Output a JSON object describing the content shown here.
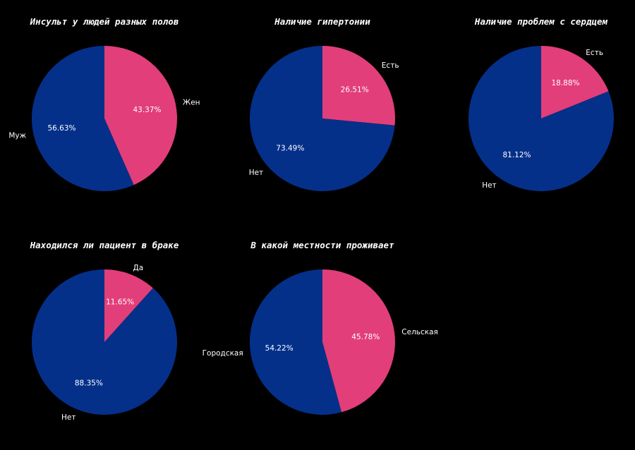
{
  "colors": {
    "background": "#000000",
    "accent_pink": "#e23e7a",
    "accent_blue": "#04308a",
    "text": "#ffffff"
  },
  "chart_data": [
    {
      "type": "pie",
      "title": "Инсульт у людей разных полов",
      "slices": [
        {
          "label": "Жен",
          "value": 43.37,
          "pct_label": "43.37%",
          "color": "#e23e7a"
        },
        {
          "label": "Муж",
          "value": 56.63,
          "pct_label": "56.63%",
          "color": "#04308a"
        }
      ]
    },
    {
      "type": "pie",
      "title": "Наличие гипертонии",
      "slices": [
        {
          "label": "Есть",
          "value": 26.51,
          "pct_label": "26.51%",
          "color": "#e23e7a"
        },
        {
          "label": "Нет",
          "value": 73.49,
          "pct_label": "73.49%",
          "color": "#04308a"
        }
      ]
    },
    {
      "type": "pie",
      "title": "Наличие проблем с сердцем",
      "slices": [
        {
          "label": "Есть",
          "value": 18.88,
          "pct_label": "18.88%",
          "color": "#e23e7a"
        },
        {
          "label": "Нет",
          "value": 81.12,
          "pct_label": "81.12%",
          "color": "#04308a"
        }
      ]
    },
    {
      "type": "pie",
      "title": "Находился ли пациент в браке",
      "slices": [
        {
          "label": "Да",
          "value": 11.65,
          "pct_label": "11.65%",
          "color": "#e23e7a"
        },
        {
          "label": "Нет",
          "value": 88.35,
          "pct_label": "88.35%",
          "color": "#04308a"
        }
      ]
    },
    {
      "type": "pie",
      "title": "В какой местности проживает",
      "slices": [
        {
          "label": "Сельская",
          "value": 45.78,
          "pct_label": "45.78%",
          "color": "#e23e7a"
        },
        {
          "label": "Городская",
          "value": 54.22,
          "pct_label": "54.22%",
          "color": "#04308a"
        }
      ]
    }
  ]
}
